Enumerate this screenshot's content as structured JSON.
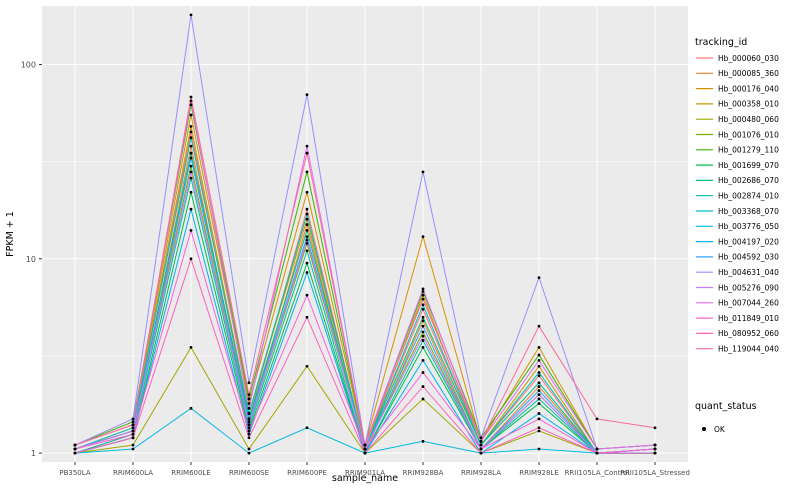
{
  "figure": {
    "bg": "#FFFFFF",
    "panel_bg": "#EBEBEB",
    "grid_color": "#FFFFFF",
    "tick_label_color": "#4D4D4D",
    "tick_mark_color": "#333333",
    "point_color": "#000000"
  },
  "legend": {
    "tracking_title": "tracking_id",
    "quant_title": "quant_status",
    "quant_items": [
      {
        "label": "OK"
      }
    ]
  },
  "chart_data": {
    "type": "line",
    "title": "",
    "xlabel": "sample_name",
    "ylabel": "FPKM + 1",
    "y_scale": "log10",
    "ylim": [
      0.9,
      200
    ],
    "y_ticks": [
      1,
      10,
      100
    ],
    "y_minor_ticks": [
      3.162,
      31.623
    ],
    "grid": true,
    "legend_position": "right",
    "categories": [
      "PB350LA",
      "RRIM600LA",
      "RRIM600LE",
      "RRIM600SE",
      "RRIM600PE",
      "RRIM901LA",
      "RRIM928BA",
      "RRIM928LA",
      "RRIM928LE",
      "RRII105LA_Control",
      "RRII105LA_Stressed"
    ],
    "series": [
      {
        "name": "Hb_000060_030",
        "color": "#F8766D",
        "values": [
          1.05,
          1.3,
          45,
          1.5,
          18,
          1.05,
          5.5,
          1.1,
          2.5,
          1.0,
          1.05
        ]
      },
      {
        "name": "Hb_000085_360",
        "color": "#EA8331",
        "values": [
          1.0,
          1.25,
          38,
          1.4,
          15,
          1.0,
          4.8,
          1.05,
          2.2,
          1.0,
          1.0
        ]
      },
      {
        "name": "Hb_000176_040",
        "color": "#D89000",
        "values": [
          1.1,
          1.4,
          55,
          1.8,
          22,
          1.1,
          13.0,
          1.15,
          3.5,
          1.05,
          1.1
        ]
      },
      {
        "name": "Hb_000358_010",
        "color": "#C09B00",
        "values": [
          1.05,
          1.35,
          48,
          1.6,
          16,
          1.05,
          6.5,
          1.1,
          2.8,
          1.0,
          1.05
        ]
      },
      {
        "name": "Hb_000480_060",
        "color": "#A3A500",
        "values": [
          1.0,
          1.1,
          3.5,
          1.05,
          2.8,
          1.0,
          1.9,
          1.0,
          1.3,
          1.0,
          1.0
        ]
      },
      {
        "name": "Hb_001076_010",
        "color": "#7CAE00",
        "values": [
          1.05,
          1.3,
          30,
          1.4,
          12,
          1.05,
          4.2,
          1.05,
          2.0,
          1.0,
          1.05
        ]
      },
      {
        "name": "Hb_001279_110",
        "color": "#39B600",
        "values": [
          1.1,
          1.45,
          62,
          1.9,
          28,
          1.1,
          6.8,
          1.2,
          3.2,
          1.05,
          1.1
        ]
      },
      {
        "name": "Hb_001699_070",
        "color": "#00BB4E",
        "values": [
          1.0,
          1.2,
          22,
          1.3,
          9.5,
          1.0,
          3.5,
          1.05,
          1.8,
          1.0,
          1.0
        ]
      },
      {
        "name": "Hb_002686_070",
        "color": "#00BF7D",
        "values": [
          1.05,
          1.3,
          35,
          1.5,
          14,
          1.05,
          5.0,
          1.1,
          2.3,
          1.0,
          1.05
        ]
      },
      {
        "name": "Hb_002874_010",
        "color": "#00C1A3",
        "values": [
          1.0,
          1.25,
          26,
          1.35,
          11,
          1.0,
          3.8,
          1.05,
          1.9,
          1.0,
          1.0
        ]
      },
      {
        "name": "Hb_003368_070",
        "color": "#00BFC4",
        "values": [
          1.05,
          1.35,
          42,
          1.6,
          17,
          1.05,
          5.8,
          1.1,
          2.6,
          1.0,
          1.05
        ]
      },
      {
        "name": "Hb_003776_050",
        "color": "#00BAE0",
        "values": [
          1.0,
          1.05,
          1.7,
          1.0,
          1.35,
          1.0,
          1.15,
          1.0,
          1.05,
          1.0,
          1.0
        ]
      },
      {
        "name": "Hb_004197_020",
        "color": "#00B0F6",
        "values": [
          1.0,
          1.2,
          18,
          1.25,
          8.5,
          1.0,
          3.0,
          1.0,
          1.6,
          1.0,
          1.0
        ]
      },
      {
        "name": "Hb_004592_030",
        "color": "#35A2FF",
        "values": [
          1.05,
          1.3,
          33,
          1.45,
          13,
          1.05,
          4.5,
          1.05,
          2.1,
          1.0,
          1.05
        ]
      },
      {
        "name": "Hb_004631_040",
        "color": "#9590FF",
        "values": [
          1.1,
          1.5,
          180,
          2.3,
          70,
          1.1,
          28,
          1.2,
          8.0,
          1.05,
          1.1
        ]
      },
      {
        "name": "Hb_005276_090",
        "color": "#C77CFF",
        "values": [
          1.05,
          1.3,
          28,
          1.4,
          12.5,
          1.05,
          4.0,
          1.05,
          2.0,
          1.0,
          1.05
        ]
      },
      {
        "name": "Hb_007044_260",
        "color": "#E76BF3",
        "values": [
          1.1,
          1.4,
          65,
          1.7,
          38,
          1.1,
          7.0,
          1.15,
          3.0,
          1.05,
          1.1
        ]
      },
      {
        "name": "Hb_011849_010",
        "color": "#FA62DB",
        "values": [
          1.05,
          1.25,
          14,
          1.3,
          6.5,
          1.05,
          2.6,
          1.05,
          1.5,
          1.0,
          1.05
        ]
      },
      {
        "name": "Hb_080952_060",
        "color": "#FF62BC",
        "values": [
          1.0,
          1.2,
          10,
          1.2,
          5.0,
          1.0,
          2.2,
          1.0,
          1.35,
          1.0,
          1.0
        ]
      },
      {
        "name": "Hb_119044_040",
        "color": "#FF6A98",
        "values": [
          1.1,
          1.4,
          68,
          2.0,
          35,
          1.1,
          6.2,
          1.15,
          4.5,
          1.5,
          1.35
        ]
      }
    ]
  }
}
